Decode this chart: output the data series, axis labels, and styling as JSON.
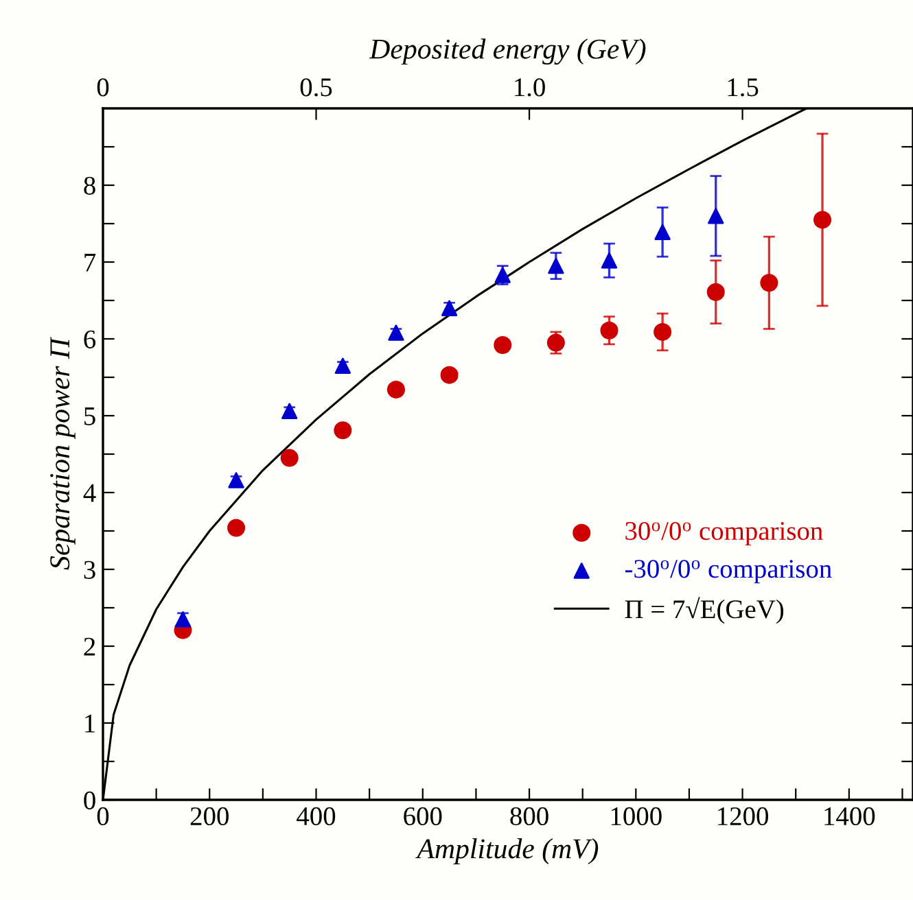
{
  "chart_data": {
    "type": "scatter",
    "xlabel": "Amplitude (mV)",
    "ylabel": "Separation power Π",
    "x2label": "Deposited energy (GeV)",
    "xlim": [
      0,
      1520
    ],
    "ylim": [
      0,
      9
    ],
    "xticks": [
      0,
      {
        "value": 100,
        "label": null
      },
      200,
      {
        "value": 300,
        "label": null
      },
      400,
      {
        "value": 500,
        "label": null
      },
      600,
      {
        "value": 700,
        "label": null
      },
      800,
      {
        "value": 900,
        "label": null
      },
      1000,
      {
        "value": 1100,
        "label": null
      },
      1200,
      {
        "value": 1300,
        "label": null
      },
      1400,
      {
        "value": 1500,
        "label": null
      }
    ],
    "yticks": [
      0,
      {
        "value": 0.5,
        "label": null
      },
      1,
      {
        "value": 1.5,
        "label": null
      },
      2,
      {
        "value": 2.5,
        "label": null
      },
      3,
      {
        "value": 3.5,
        "label": null
      },
      4,
      {
        "value": 4.5,
        "label": null
      },
      5,
      {
        "value": 5.5,
        "label": null
      },
      6,
      {
        "value": 6.5,
        "label": null
      },
      7,
      {
        "value": 7.5,
        "label": null
      },
      8,
      {
        "value": 8.5,
        "label": null
      }
    ],
    "x2lim": [
      0,
      1.9
    ],
    "x2ticks": [
      0,
      0.5,
      {
        "value": 1.0,
        "label": "1.0"
      },
      1.5
    ],
    "grid": false,
    "legend": "bottom right",
    "series": [
      {
        "name": "30$^{o}$/0$^{o}$ comparison",
        "marker": "circle",
        "color": "#cc0000",
        "x": [
          150,
          250,
          350,
          450,
          550,
          650,
          750,
          850,
          950,
          1050,
          1150,
          1250,
          1350
        ],
        "values": [
          2.21,
          3.54,
          4.45,
          4.81,
          5.34,
          5.53,
          5.92,
          5.95,
          6.11,
          6.09,
          6.61,
          6.73,
          7.55
        ],
        "errors": [
          null,
          null,
          null,
          null,
          null,
          null,
          0.05,
          0.14,
          0.18,
          0.24,
          0.41,
          0.6,
          1.12
        ]
      },
      {
        "name": "-30$^{o}$/0$^{o}$ comparison",
        "marker": "triangle",
        "color": "#0000cc",
        "x": [
          150,
          250,
          350,
          450,
          550,
          650,
          750,
          850,
          950,
          1050,
          1150
        ],
        "values": [
          2.35,
          4.16,
          5.06,
          5.65,
          6.08,
          6.4,
          6.83,
          6.95,
          7.02,
          7.39,
          7.6
        ],
        "errors": [
          0.08,
          0.05,
          0.05,
          0.05,
          0.05,
          0.07,
          0.12,
          0.17,
          0.22,
          0.32,
          0.52
        ]
      },
      {
        "name": "Π = 7√E(GeV)",
        "type": "line",
        "marker": "none",
        "line_style": "solid",
        "color": "#000000",
        "x": [
          0,
          20,
          50,
          100,
          150,
          200,
          300,
          400,
          500,
          600,
          700,
          800,
          900,
          1000,
          1100,
          1200,
          1300,
          1320
        ],
        "values": [
          0,
          1.11,
          1.75,
          2.48,
          3.03,
          3.5,
          4.29,
          4.95,
          5.54,
          6.07,
          6.55,
          7.0,
          7.43,
          7.83,
          8.21,
          8.58,
          8.93,
          9.0
        ]
      }
    ]
  }
}
